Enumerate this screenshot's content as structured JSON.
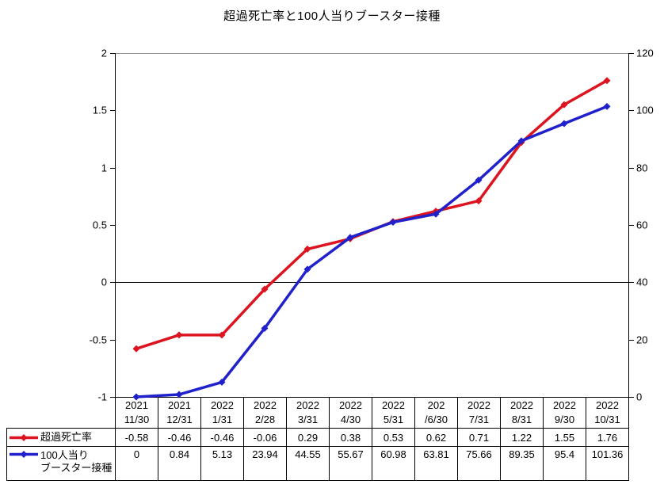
{
  "title": "超過死亡率と100人当りブースター接種",
  "chart_data": {
    "type": "line",
    "title": "超過死亡率と100人当りブースター接種",
    "categories": [
      [
        "2021",
        "11/30"
      ],
      [
        "2021",
        "12/31"
      ],
      [
        "2022",
        "1/31"
      ],
      [
        "2022",
        "2/28"
      ],
      [
        "2022",
        "3/31"
      ],
      [
        "2022",
        "4/30"
      ],
      [
        "2022",
        "5/31"
      ],
      [
        "202",
        "/6/30"
      ],
      [
        "2022",
        "7/31"
      ],
      [
        "2022",
        "8/31"
      ],
      [
        "2022",
        "9/30"
      ],
      [
        "2022",
        "10/31"
      ]
    ],
    "series": [
      {
        "name": "超過死亡率",
        "name_lines": [
          "超過死亡率"
        ],
        "axis": "left",
        "color": "#dc1420",
        "marker": "diamond",
        "values": [
          -0.58,
          -0.46,
          -0.46,
          -0.06,
          0.29,
          0.38,
          0.53,
          0.62,
          0.71,
          1.22,
          1.55,
          1.76
        ]
      },
      {
        "name": "100人当りブースター接種",
        "name_lines": [
          "100人当り",
          "ブースター接種"
        ],
        "axis": "right",
        "color": "#2121cc",
        "marker": "diamond",
        "values": [
          0,
          0.84,
          5.13,
          23.94,
          44.55,
          55.67,
          60.98,
          63.81,
          75.66,
          89.35,
          95.4,
          101.36
        ]
      }
    ],
    "left_axis": {
      "min": -1,
      "max": 2,
      "ticks": [
        2,
        1.5,
        1,
        0.5,
        0,
        -0.5,
        -1
      ]
    },
    "right_axis": {
      "min": 0,
      "max": 120,
      "ticks": [
        120,
        100,
        80,
        60,
        40,
        20,
        0
      ]
    },
    "zero_line": true,
    "grid": false,
    "legend_position": "data-table-left",
    "plot_border_top_color": "#909090",
    "axis_color": "#000000",
    "background": "#ffffff"
  }
}
